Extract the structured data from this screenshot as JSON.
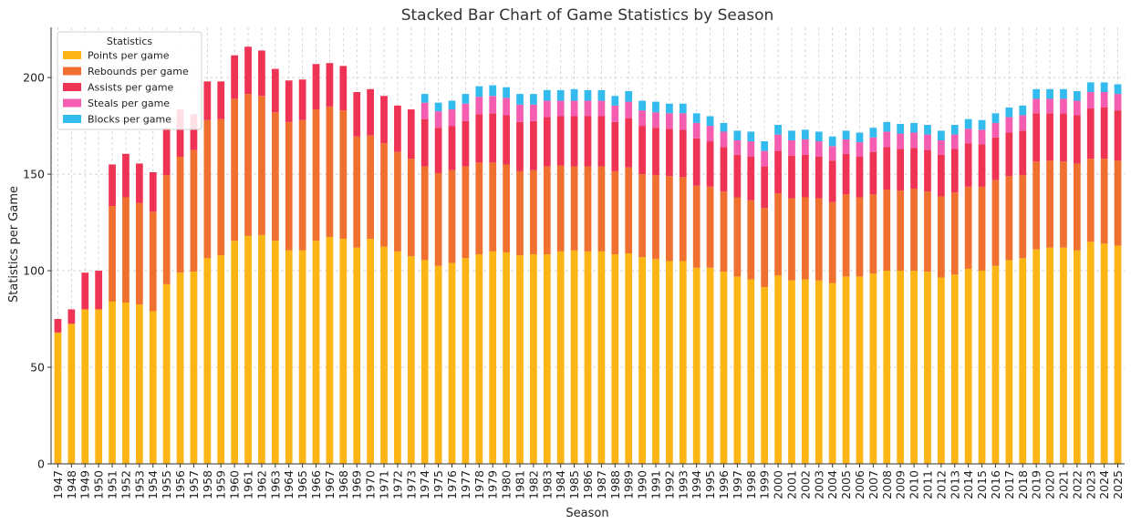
{
  "chart_data": {
    "type": "bar",
    "stacked": true,
    "title": "Stacked Bar Chart of Game Statistics by Season",
    "xlabel": "Season",
    "ylabel": "Statistics per Game",
    "ylim": [
      0,
      226
    ],
    "yticks": [
      0,
      50,
      100,
      150,
      200
    ],
    "grid": true,
    "legend": {
      "title": "Statistics",
      "placement": "top-left"
    },
    "categories": [
      "1947",
      "1948",
      "1949",
      "1950",
      "1951",
      "1952",
      "1953",
      "1954",
      "1955",
      "1956",
      "1957",
      "1958",
      "1959",
      "1960",
      "1961",
      "1962",
      "1963",
      "1964",
      "1965",
      "1966",
      "1967",
      "1968",
      "1969",
      "1970",
      "1971",
      "1972",
      "1973",
      "1974",
      "1975",
      "1976",
      "1977",
      "1978",
      "1979",
      "1980",
      "1981",
      "1982",
      "1983",
      "1984",
      "1985",
      "1986",
      "1987",
      "1988",
      "1989",
      "1990",
      "1991",
      "1992",
      "1993",
      "1994",
      "1995",
      "1996",
      "1997",
      "1998",
      "1999",
      "2000",
      "2001",
      "2002",
      "2003",
      "2004",
      "2005",
      "2006",
      "2007",
      "2008",
      "2009",
      "2010",
      "2011",
      "2012",
      "2013",
      "2014",
      "2015",
      "2016",
      "2017",
      "2018",
      "2019",
      "2020",
      "2021",
      "2022",
      "2023",
      "2024",
      "2025"
    ],
    "series": [
      {
        "name": "Points per game",
        "color": "#FDB515",
        "values": [
          68,
          72.5,
          80,
          80,
          84,
          83.5,
          82.5,
          79,
          93,
          99,
          99.5,
          106.5,
          108,
          115.5,
          118,
          118.5,
          115.5,
          110.5,
          110.5,
          115.5,
          117.5,
          116.5,
          112,
          116.5,
          112.5,
          110,
          107.5,
          105.5,
          102.5,
          104,
          106.5,
          108.5,
          110,
          109.5,
          108,
          108.5,
          108.5,
          110,
          110.5,
          110,
          110,
          108.5,
          109,
          107,
          106,
          105,
          105,
          101.5,
          101.5,
          99.5,
          97,
          95.5,
          91.5,
          97.5,
          95,
          95.5,
          95,
          93.5,
          97,
          97,
          98.5,
          100,
          100,
          100,
          99.5,
          96.5,
          98,
          101,
          100,
          102.5,
          105.5,
          106.5,
          111,
          112,
          112,
          110.5,
          115,
          114,
          113
        ]
      },
      {
        "name": "Rebounds per game",
        "color": "#F07030",
        "values": [
          0,
          0,
          0,
          0,
          49.5,
          54.5,
          52.5,
          51.5,
          56.5,
          60,
          63,
          71.5,
          70.5,
          73.5,
          73.5,
          72,
          66.5,
          66.5,
          67.5,
          68,
          67.5,
          66.5,
          57.5,
          53.5,
          53.5,
          51.5,
          50.5,
          48.5,
          48,
          48,
          47.5,
          47.5,
          46,
          45.5,
          43.5,
          43.5,
          45.5,
          44.5,
          43.5,
          44,
          44,
          43,
          44.5,
          43,
          43.5,
          44,
          43.5,
          42.5,
          42,
          41.5,
          41,
          41,
          41,
          42.5,
          42.5,
          42.5,
          42.5,
          42,
          42.5,
          41,
          41,
          42,
          41.5,
          42.5,
          41.5,
          42,
          42.5,
          42.5,
          43.5,
          44.5,
          43.5,
          43,
          45.5,
          45,
          44.5,
          45,
          43,
          44,
          44
        ]
      },
      {
        "name": "Assists per game",
        "color": "#EE3355",
        "values": [
          7,
          7.5,
          19,
          20,
          21.5,
          22.5,
          20.5,
          20.5,
          24.5,
          24.5,
          18.5,
          20,
          19.5,
          22.5,
          24.5,
          23.5,
          22.5,
          21.5,
          21,
          23.5,
          22.5,
          23,
          23,
          24,
          24.5,
          24,
          25.5,
          24.5,
          23.5,
          23,
          23.5,
          25,
          25.5,
          25.5,
          25.5,
          25.5,
          25.5,
          25.5,
          26,
          26,
          26,
          25.5,
          25.5,
          25,
          24.5,
          24.5,
          24.5,
          24.5,
          23.5,
          23,
          22,
          22.5,
          21.5,
          22,
          22,
          22,
          21.5,
          21.5,
          21,
          21,
          22,
          22,
          21.5,
          21,
          21.5,
          21.5,
          22.5,
          22.5,
          22,
          22,
          22.5,
          23,
          25,
          24.5,
          25,
          25,
          26,
          26.5,
          26
        ]
      },
      {
        "name": "Steals per game",
        "color": "#F55DB0",
        "values": [
          0,
          0,
          0,
          0,
          0,
          0,
          0,
          0,
          0,
          0,
          0,
          0,
          0,
          0,
          0,
          0,
          0,
          0,
          0,
          0,
          0,
          0,
          0,
          0,
          0,
          0,
          0,
          8.5,
          8.5,
          8.5,
          9,
          9,
          9,
          9,
          9,
          8.5,
          8.5,
          8,
          8,
          8,
          8,
          8.5,
          8.5,
          8,
          8,
          8,
          8.5,
          8,
          8,
          8,
          7.5,
          8,
          8,
          8.5,
          8,
          8,
          8,
          7.5,
          7.5,
          7.5,
          7.5,
          8,
          8,
          8,
          8,
          7.5,
          7.5,
          7.5,
          7.5,
          7.5,
          8,
          8,
          7.5,
          7.5,
          7.5,
          7.5,
          8.5,
          8,
          8.5
        ]
      },
      {
        "name": "Blocks per game",
        "color": "#33BBEE",
        "values": [
          0,
          0,
          0,
          0,
          0,
          0,
          0,
          0,
          0,
          0,
          0,
          0,
          0,
          0,
          0,
          0,
          0,
          0,
          0,
          0,
          0,
          0,
          0,
          0,
          0,
          0,
          0,
          4.5,
          4.5,
          4.5,
          5,
          5.5,
          5.5,
          5.5,
          5.5,
          5.5,
          5.5,
          5.5,
          6,
          5.5,
          5.5,
          5,
          5.5,
          5,
          5.5,
          5,
          5,
          5,
          5,
          4.5,
          5,
          5,
          5,
          5,
          5,
          5,
          5,
          5,
          4.5,
          5,
          5,
          5,
          5,
          5,
          5,
          5,
          5,
          5,
          5,
          5,
          5,
          5,
          5,
          5,
          5,
          5,
          5,
          5,
          5
        ]
      }
    ]
  }
}
